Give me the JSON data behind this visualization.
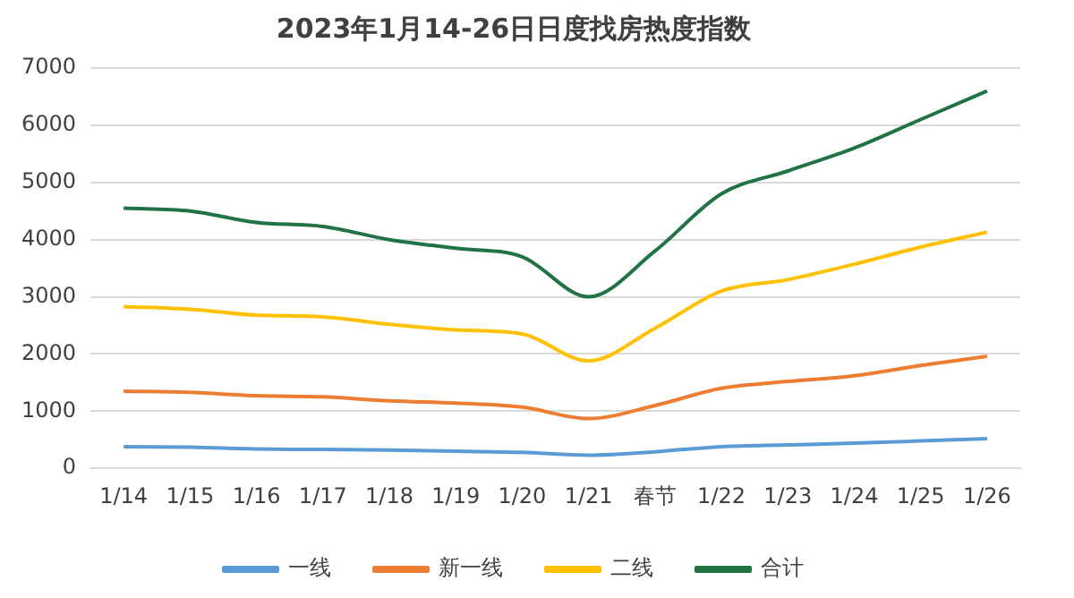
{
  "chart_data": {
    "type": "line",
    "title": "2023年1月14-26日日度找房热度指数",
    "categories": [
      "1/14",
      "1/15",
      "1/16",
      "1/17",
      "1/18",
      "1/19",
      "1/20",
      "1/21",
      "春节",
      "1/22",
      "1/23",
      "1/24",
      "1/25",
      "1/26"
    ],
    "series": [
      {
        "name": "一线",
        "color": "#5b9bd5",
        "values": [
          380,
          370,
          340,
          330,
          320,
          300,
          280,
          230,
          290,
          380,
          410,
          440,
          480,
          520
        ]
      },
      {
        "name": "新一线",
        "color": "#ed7d31",
        "values": [
          1350,
          1330,
          1270,
          1250,
          1180,
          1140,
          1070,
          870,
          1100,
          1400,
          1520,
          1620,
          1800,
          1960
        ]
      },
      {
        "name": "二线",
        "color": "#ffc000",
        "values": [
          2830,
          2780,
          2680,
          2650,
          2520,
          2420,
          2350,
          1880,
          2450,
          3100,
          3300,
          3570,
          3870,
          4130
        ]
      },
      {
        "name": "合计",
        "color": "#217346",
        "values": [
          4550,
          4500,
          4300,
          4230,
          4000,
          3850,
          3700,
          3000,
          3800,
          4800,
          5200,
          5600,
          6100,
          6600
        ]
      }
    ],
    "ylim": [
      0,
      7000
    ],
    "yticks": [
      0,
      1000,
      2000,
      3000,
      4000,
      5000,
      6000,
      7000
    ],
    "grid": "y",
    "legend": "bottom",
    "marker": "none",
    "line_style": "solid"
  }
}
